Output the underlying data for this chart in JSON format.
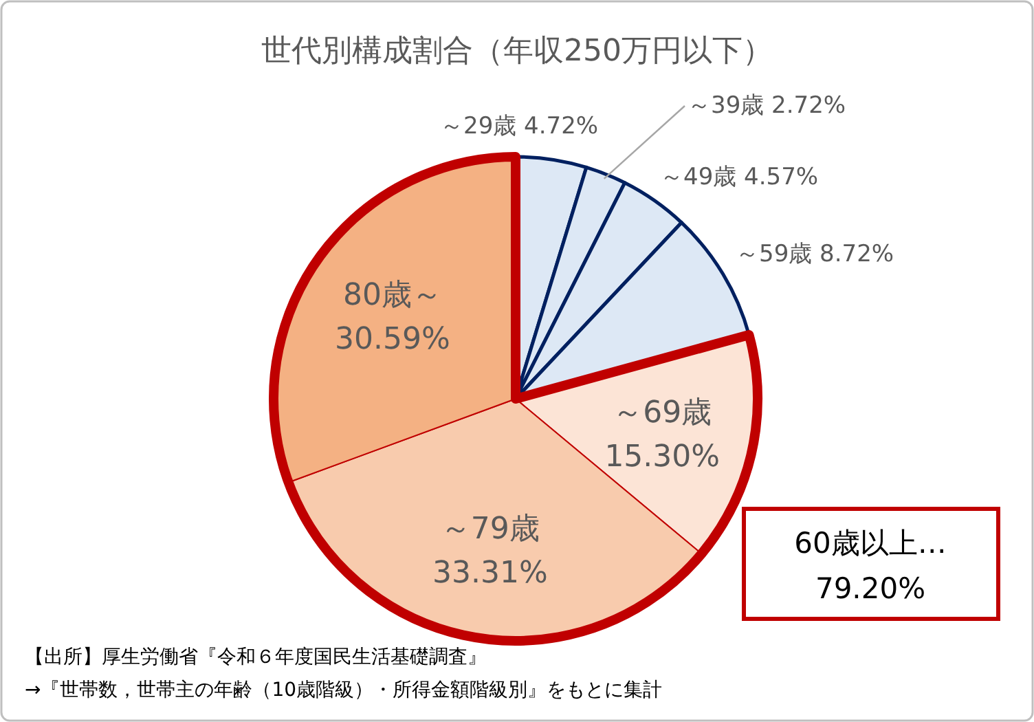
{
  "chart_data": {
    "type": "pie",
    "title": "世代別構成割合（年収250万円以下）",
    "categories": [
      "～29歳",
      "～39歳",
      "～49歳",
      "～59歳",
      "～69歳",
      "～79歳",
      "80歳～"
    ],
    "values": [
      4.72,
      2.72,
      4.57,
      8.72,
      15.3,
      33.31,
      30.59
    ],
    "value_labels": [
      "4.72%",
      "2.72%",
      "4.57%",
      "8.72%",
      "15.30%",
      "33.31%",
      "30.59%"
    ],
    "colors": [
      "#dde8f5",
      "#dde8f5",
      "#dde8f5",
      "#dde8f5",
      "#fce4d6",
      "#f8cbad",
      "#f4b183"
    ],
    "annotations": [
      "60歳以上…\n79.20%",
      "【出所】厚生労働省『令和６年度国民生活基礎調査』",
      "→『世帯数，世帯主の年齢（10歳階級）・所得金額階級別』をもとに集計"
    ]
  }
}
